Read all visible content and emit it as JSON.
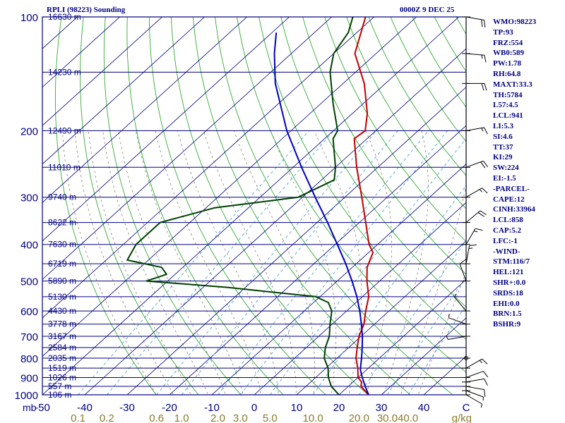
{
  "header": {
    "station": "RPLI (98223) Sounding",
    "valid_time": "0000Z  9 DEC 25"
  },
  "indices": [
    "WMO:98223",
    "TP:93",
    "FRZ:554",
    "WB0:589",
    "PW:1.78",
    "RH:64.8",
    "MAXT:33.3",
    "TH:5784",
    "L57:4.5",
    "LCL:941",
    "LI:5.3",
    "SI:4.6",
    "TT:37",
    "KI:29",
    "SW:224",
    "EI:-1.5",
    "-PARCEL-",
    "CAPE:12",
    "CINH:33964",
    "LCL:858",
    "CAP:5.2",
    "LFC:-1",
    "-WIND-",
    "STM:116/7",
    "HEL:121",
    "SHR+:0.0",
    "SRDS:18",
    "EHI:0.0",
    "BRN:1.5",
    "BSHR:9"
  ],
  "chart_data": {
    "type": "line",
    "subtype": "skew-t log-p sounding",
    "xlabel": "C",
    "ylabel": "mb",
    "xlim": [
      -50,
      50
    ],
    "ylim": [
      1000,
      100
    ],
    "y_scale": "log",
    "x_ticks": [
      -50,
      -40,
      -30,
      -20,
      -10,
      0,
      10,
      20,
      30,
      40,
      50
    ],
    "x_tick_labels": [
      "-50",
      "-40",
      "-30",
      "-20",
      "-10",
      "0",
      "10",
      "20",
      "30",
      "40",
      "C"
    ],
    "pressure_ticks": [
      100,
      200,
      300,
      400,
      500,
      600,
      700,
      800,
      900,
      1000
    ],
    "pressure_tick_labels": [
      "100",
      "200",
      "300",
      "400",
      "500",
      "600",
      "700",
      "800",
      "900",
      "1000"
    ],
    "y_axis_title": "mb",
    "height_levels": [
      {
        "p": 100,
        "label": "16630 m"
      },
      {
        "p": 140,
        "label": "14230 m"
      },
      {
        "p": 200,
        "label": "12490 m"
      },
      {
        "p": 250,
        "label": "11010 m"
      },
      {
        "p": 300,
        "label": "9740 m"
      },
      {
        "p": 350,
        "label": "8622 m"
      },
      {
        "p": 400,
        "label": "7630 m"
      },
      {
        "p": 450,
        "label": "6719 m"
      },
      {
        "p": 500,
        "label": "5890 m"
      },
      {
        "p": 550,
        "label": "5130 m"
      },
      {
        "p": 600,
        "label": "4430 m"
      },
      {
        "p": 650,
        "label": "3778 m"
      },
      {
        "p": 700,
        "label": "3167 m"
      },
      {
        "p": 750,
        "label": "2584 m"
      },
      {
        "p": 800,
        "label": "2035 m"
      },
      {
        "p": 850,
        "label": "1519 m"
      },
      {
        "p": 900,
        "label": "1026 m"
      },
      {
        "p": 950,
        "label": "557 m"
      },
      {
        "p": 1000,
        "label": "106 m"
      }
    ],
    "mixing_ratio_labels": [
      {
        "w": 0.1,
        "label": "0.1"
      },
      {
        "w": 0.2,
        "label": "0.2"
      },
      {
        "w": 0.6,
        "label": "0.6"
      },
      {
        "w": 1.0,
        "label": "1.0"
      },
      {
        "w": 2.0,
        "label": "2.0"
      },
      {
        "w": 3.0,
        "label": "3.0"
      },
      {
        "w": 5.0,
        "label": "5.0"
      },
      {
        "w": 10.0,
        "label": "10.0"
      },
      {
        "w": 20.0,
        "label": "20.0"
      },
      {
        "w": 30.0,
        "label": "30.0"
      },
      {
        "w": 40.0,
        "label": "40.0"
      }
    ],
    "mixing_ratio_unit": "g/kg",
    "series": [
      {
        "key": "temperature",
        "color": "#c00000",
        "points": [
          {
            "p": 1000,
            "t": 27
          },
          {
            "p": 950,
            "t": 23
          },
          {
            "p": 925,
            "t": 22
          },
          {
            "p": 900,
            "t": 20
          },
          {
            "p": 850,
            "t": 17.5
          },
          {
            "p": 800,
            "t": 14.5
          },
          {
            "p": 750,
            "t": 12
          },
          {
            "p": 700,
            "t": 9.5
          },
          {
            "p": 650,
            "t": 7.5
          },
          {
            "p": 600,
            "t": 4.5
          },
          {
            "p": 550,
            "t": 1.5
          },
          {
            "p": 500,
            "t": -3
          },
          {
            "p": 460,
            "t": -6.5
          },
          {
            "p": 420,
            "t": -9
          },
          {
            "p": 400,
            "t": -12
          },
          {
            "p": 350,
            "t": -18.5
          },
          {
            "p": 300,
            "t": -26
          },
          {
            "p": 250,
            "t": -35
          },
          {
            "p": 210,
            "t": -43
          },
          {
            "p": 200,
            "t": -42.5
          },
          {
            "p": 180,
            "t": -46.5
          },
          {
            "p": 150,
            "t": -55
          },
          {
            "p": 125,
            "t": -65
          },
          {
            "p": 100,
            "t": -72
          }
        ]
      },
      {
        "key": "dewpoint",
        "color": "#004000",
        "points": [
          {
            "p": 1000,
            "t": 20
          },
          {
            "p": 950,
            "t": 16
          },
          {
            "p": 900,
            "t": 13
          },
          {
            "p": 850,
            "t": 10.5
          },
          {
            "p": 800,
            "t": 7
          },
          {
            "p": 750,
            "t": 4.5
          },
          {
            "p": 700,
            "t": 2.5
          },
          {
            "p": 650,
            "t": -0.5
          },
          {
            "p": 600,
            "t": -3.5
          },
          {
            "p": 570,
            "t": -6.5
          },
          {
            "p": 550,
            "t": -11
          },
          {
            "p": 520,
            "t": -34
          },
          {
            "p": 500,
            "t": -55
          },
          {
            "p": 480,
            "t": -52
          },
          {
            "p": 460,
            "t": -55
          },
          {
            "p": 440,
            "t": -65
          },
          {
            "p": 400,
            "t": -67
          },
          {
            "p": 350,
            "t": -67
          },
          {
            "p": 320,
            "t": -58
          },
          {
            "p": 300,
            "t": -41
          },
          {
            "p": 270,
            "t": -37
          },
          {
            "p": 250,
            "t": -40
          },
          {
            "p": 210,
            "t": -48
          },
          {
            "p": 200,
            "t": -49
          },
          {
            "p": 170,
            "t": -57
          },
          {
            "p": 140,
            "t": -66
          },
          {
            "p": 125,
            "t": -70
          },
          {
            "p": 110,
            "t": -72
          },
          {
            "p": 100,
            "t": -75
          }
        ]
      },
      {
        "key": "parcel",
        "color": "#0000c0",
        "points": [
          {
            "p": 1000,
            "t": 27
          },
          {
            "p": 950,
            "t": 24
          },
          {
            "p": 900,
            "t": 21
          },
          {
            "p": 858,
            "t": 18.5
          },
          {
            "p": 800,
            "t": 15.8
          },
          {
            "p": 750,
            "t": 13.2
          },
          {
            "p": 700,
            "t": 10.3
          },
          {
            "p": 650,
            "t": 6.9
          },
          {
            "p": 600,
            "t": 3.1
          },
          {
            "p": 550,
            "t": -1.3
          },
          {
            "p": 500,
            "t": -6.5
          },
          {
            "p": 450,
            "t": -12.5
          },
          {
            "p": 400,
            "t": -19.5
          },
          {
            "p": 350,
            "t": -27.5
          },
          {
            "p": 300,
            "t": -37
          },
          {
            "p": 250,
            "t": -48
          },
          {
            "p": 200,
            "t": -61
          },
          {
            "p": 150,
            "t": -76
          },
          {
            "p": 125,
            "t": -84
          },
          {
            "p": 110,
            "t": -89
          }
        ]
      }
    ],
    "wind_barbs": [
      {
        "p": 1000,
        "dir": 120,
        "spd": 5
      },
      {
        "p": 975,
        "dir": 110,
        "spd": 5
      },
      {
        "p": 950,
        "dir": 100,
        "spd": 10
      },
      {
        "p": 925,
        "dir": 80,
        "spd": 10
      },
      {
        "p": 900,
        "dir": 70,
        "spd": 10
      },
      {
        "p": 850,
        "dir": 60,
        "spd": 15
      },
      {
        "p": 800,
        "dir": 180,
        "spd": 0
      },
      {
        "p": 700,
        "dir": 260,
        "spd": 5
      },
      {
        "p": 650,
        "dir": 290,
        "spd": 5
      },
      {
        "p": 600,
        "dir": 320,
        "spd": 5
      },
      {
        "p": 500,
        "dir": 340,
        "spd": 10
      },
      {
        "p": 450,
        "dir": 10,
        "spd": 15
      },
      {
        "p": 400,
        "dir": 30,
        "spd": 15
      },
      {
        "p": 350,
        "dir": 50,
        "spd": 20
      },
      {
        "p": 300,
        "dir": 60,
        "spd": 15
      },
      {
        "p": 250,
        "dir": 70,
        "spd": 20
      },
      {
        "p": 200,
        "dir": 80,
        "spd": 15
      },
      {
        "p": 150,
        "dir": 90,
        "spd": 20
      },
      {
        "p": 125,
        "dir": 95,
        "spd": 15
      },
      {
        "p": 100,
        "dir": 100,
        "spd": 20
      }
    ]
  }
}
